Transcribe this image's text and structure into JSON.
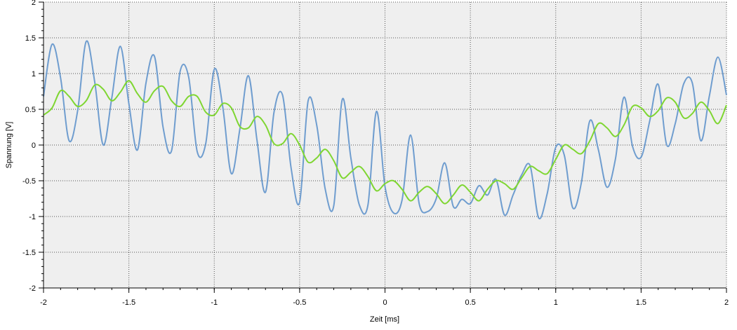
{
  "chart_data": {
    "type": "line",
    "title": "",
    "xlabel": "Zeit [ms]",
    "ylabel": "Spannung [V]",
    "xlim": [
      -2,
      2
    ],
    "ylim": [
      -2,
      2
    ],
    "x_ticks": [
      -2,
      -1.5,
      -1,
      -0.5,
      0,
      0.5,
      1,
      1.5,
      2
    ],
    "x_tick_labels": [
      "-2",
      "-1.5",
      "-1",
      "-0.5",
      "0",
      "0.5",
      "1",
      "1.5",
      "2"
    ],
    "y_ticks": [
      2,
      1.5,
      1,
      0.5,
      0,
      -0.5,
      -1,
      -1.5,
      -2
    ],
    "y_tick_labels": [
      "2",
      "1.5",
      "1",
      "0.5",
      "0",
      "-0.5",
      "-1",
      "-1.5",
      "-2"
    ],
    "grid": true,
    "legend": "none",
    "plot_background": "#efefef",
    "series": [
      {
        "color": "#6f9dcf",
        "x": [
          -2.0,
          -1.95,
          -1.9,
          -1.85,
          -1.8,
          -1.75,
          -1.7,
          -1.65,
          -1.6,
          -1.55,
          -1.5,
          -1.45,
          -1.4,
          -1.35,
          -1.3,
          -1.25,
          -1.2,
          -1.15,
          -1.1,
          -1.05,
          -1.0,
          -0.95,
          -0.9,
          -0.85,
          -0.8,
          -0.75,
          -0.7,
          -0.65,
          -0.6,
          -0.55,
          -0.5,
          -0.45,
          -0.4,
          -0.35,
          -0.3,
          -0.25,
          -0.2,
          -0.15,
          -0.1,
          -0.05,
          0.0,
          0.05,
          0.1,
          0.15,
          0.2,
          0.25,
          0.3,
          0.35,
          0.4,
          0.45,
          0.5,
          0.55,
          0.6,
          0.65,
          0.7,
          0.75,
          0.8,
          0.85,
          0.9,
          0.95,
          1.0,
          1.05,
          1.1,
          1.15,
          1.2,
          1.25,
          1.3,
          1.35,
          1.4,
          1.45,
          1.5,
          1.55,
          1.6,
          1.65,
          1.7,
          1.75,
          1.8,
          1.85,
          1.9,
          1.95,
          2.0
        ],
        "y": [
          0.68,
          1.41,
          0.94,
          0.06,
          0.48,
          1.45,
          0.88,
          0.0,
          0.66,
          1.38,
          0.58,
          -0.07,
          0.87,
          1.24,
          0.25,
          -0.08,
          1.03,
          0.95,
          -0.09,
          0.02,
          1.06,
          0.53,
          -0.4,
          0.22,
          0.97,
          0.07,
          -0.66,
          0.46,
          0.7,
          -0.32,
          -0.8,
          0.62,
          0.28,
          -0.62,
          -0.85,
          0.64,
          -0.18,
          -0.84,
          -0.84,
          0.47,
          -0.58,
          -0.95,
          -0.77,
          0.14,
          -0.82,
          -0.93,
          -0.75,
          -0.25,
          -0.86,
          -0.76,
          -0.82,
          -0.57,
          -0.7,
          -0.48,
          -0.98,
          -0.7,
          -0.42,
          -0.29,
          -1.02,
          -0.68,
          -0.03,
          -0.14,
          -0.88,
          -0.53,
          0.34,
          -0.07,
          -0.59,
          -0.19,
          0.67,
          -0.02,
          -0.17,
          0.33,
          0.85,
          -0.0,
          0.3,
          0.86,
          0.87,
          0.06,
          0.69,
          1.23,
          0.7
        ]
      },
      {
        "color": "#7fd632",
        "x": [
          -2.0,
          -1.95,
          -1.9,
          -1.85,
          -1.8,
          -1.75,
          -1.7,
          -1.65,
          -1.6,
          -1.55,
          -1.5,
          -1.45,
          -1.4,
          -1.35,
          -1.3,
          -1.25,
          -1.2,
          -1.15,
          -1.1,
          -1.05,
          -1.0,
          -0.95,
          -0.9,
          -0.85,
          -0.8,
          -0.75,
          -0.7,
          -0.65,
          -0.6,
          -0.55,
          -0.5,
          -0.45,
          -0.4,
          -0.35,
          -0.3,
          -0.25,
          -0.2,
          -0.15,
          -0.1,
          -0.05,
          0.0,
          0.05,
          0.1,
          0.15,
          0.2,
          0.25,
          0.3,
          0.35,
          0.4,
          0.45,
          0.5,
          0.55,
          0.6,
          0.65,
          0.7,
          0.75,
          0.8,
          0.85,
          0.9,
          0.95,
          1.0,
          1.05,
          1.1,
          1.15,
          1.2,
          1.25,
          1.3,
          1.35,
          1.4,
          1.45,
          1.5,
          1.55,
          1.6,
          1.65,
          1.7,
          1.75,
          1.8,
          1.85,
          1.9,
          1.95,
          2.0
        ],
        "y": [
          0.42,
          0.52,
          0.76,
          0.68,
          0.54,
          0.62,
          0.84,
          0.78,
          0.62,
          0.74,
          0.9,
          0.72,
          0.6,
          0.76,
          0.82,
          0.62,
          0.54,
          0.68,
          0.68,
          0.46,
          0.42,
          0.58,
          0.52,
          0.26,
          0.24,
          0.4,
          0.28,
          0.02,
          0.02,
          0.16,
          0.0,
          -0.24,
          -0.18,
          -0.06,
          -0.22,
          -0.46,
          -0.38,
          -0.3,
          -0.44,
          -0.64,
          -0.54,
          -0.5,
          -0.62,
          -0.78,
          -0.66,
          -0.58,
          -0.68,
          -0.82,
          -0.7,
          -0.56,
          -0.66,
          -0.78,
          -0.62,
          -0.5,
          -0.54,
          -0.62,
          -0.46,
          -0.3,
          -0.36,
          -0.4,
          -0.2,
          -0.0,
          -0.06,
          -0.12,
          0.06,
          0.3,
          0.24,
          0.12,
          0.28,
          0.54,
          0.52,
          0.4,
          0.48,
          0.66,
          0.6,
          0.38,
          0.44,
          0.6,
          0.48,
          0.3,
          0.56
        ]
      }
    ]
  }
}
